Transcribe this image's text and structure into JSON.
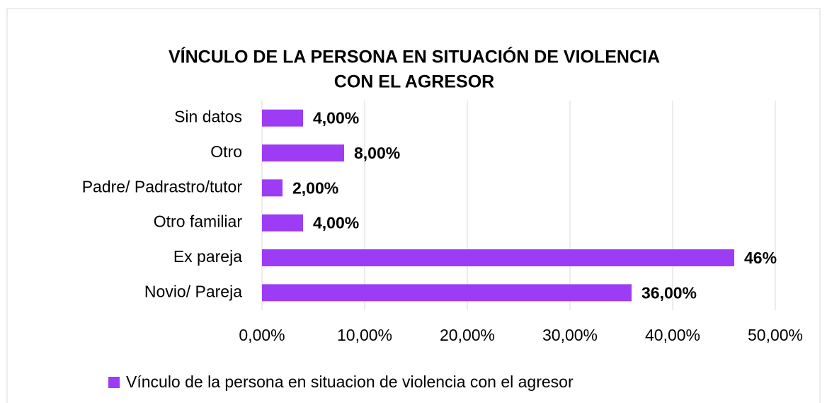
{
  "chart_data": {
    "type": "barh",
    "title_lines": [
      "VÍNCULO DE LA PERSONA EN SITUACIÓN DE VIOLENCIA",
      "CON EL AGRESOR"
    ],
    "categories": [
      "Sin datos",
      "Otro",
      "Padre/ Padrastro/tutor",
      "Otro familiar",
      "Ex pareja",
      "Novio/ Pareja"
    ],
    "series": [
      {
        "name": "Vínculo de la persona en situacion de violencia con el agresor",
        "color": "#9d3cf5",
        "values": [
          4,
          8,
          2,
          4,
          46,
          36
        ],
        "value_labels": [
          "4,00%",
          "8,00%",
          "2,00%",
          "4,00%",
          "46%",
          "36,00%"
        ]
      }
    ],
    "xlim": [
      0,
      50
    ],
    "xticks": [
      {
        "value": 0,
        "label": "0,00%"
      },
      {
        "value": 10,
        "label": "10,00%"
      },
      {
        "value": 20,
        "label": "20,00%"
      },
      {
        "value": 30,
        "label": "30,00%"
      },
      {
        "value": 40,
        "label": "40,00%"
      },
      {
        "value": 50,
        "label": "50,00%"
      }
    ],
    "grid": true,
    "legend": "bottom"
  }
}
